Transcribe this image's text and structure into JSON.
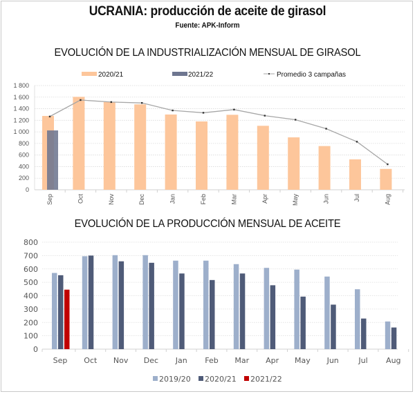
{
  "header": {
    "title": "UCRANIA: producción de aceite de girasol",
    "source": "Fuente: APK-Inform"
  },
  "colors": {
    "orange": "#fdc69b",
    "slate_semi": "#6e7690",
    "avg_line": "#a6a6a6",
    "light_blue": "#9dafcb",
    "dark_blue": "#4f5b78",
    "red": "#c00000"
  },
  "chart_data": [
    {
      "type": "bar",
      "title": "EVOLUCIÓN DE LA INDUSTRIALIZACIÓN MENSUAL DE GIRASOL",
      "xlabel": "",
      "ylabel": "",
      "categories": [
        "Sep",
        "Oct",
        "Nov",
        "Dec",
        "Jan",
        "Feb",
        "Mar",
        "Apr",
        "May",
        "Jun",
        "Jul",
        "Aug"
      ],
      "ylim": [
        0,
        1800
      ],
      "yticks": [
        0,
        200,
        400,
        600,
        800,
        1000,
        1200,
        1400,
        1600,
        1800
      ],
      "ytick_labels": [
        "0",
        "200",
        "400",
        "600",
        "800",
        "1 000",
        "1 200",
        "1 400",
        "1 600",
        "1 800"
      ],
      "grid": true,
      "legend_position": "top",
      "series": [
        {
          "name": "2020/21",
          "kind": "bar",
          "color": "#fdc69b",
          "values": [
            1275,
            1605,
            1515,
            1475,
            1300,
            1180,
            1295,
            1105,
            905,
            755,
            525,
            360
          ]
        },
        {
          "name": "2021/22",
          "kind": "bar",
          "color": "#6e7690",
          "values": [
            1025,
            null,
            null,
            null,
            null,
            null,
            null,
            null,
            null,
            null,
            null,
            null
          ]
        },
        {
          "name": "Promedio 3 campañas",
          "kind": "line",
          "color": "#a6a6a6",
          "values": [
            1265,
            1550,
            1515,
            1500,
            1370,
            1330,
            1385,
            1280,
            1210,
            1055,
            830,
            440
          ]
        }
      ]
    },
    {
      "type": "bar",
      "title": "EVOLUCIÓN DE LA PRODUCCIÓN MENSUAL DE ACEITE",
      "xlabel": "",
      "ylabel": "",
      "categories": [
        "Sep",
        "Oct",
        "Nov",
        "Dec",
        "Jan",
        "Feb",
        "Mar",
        "Apr",
        "May",
        "Jun",
        "Jul",
        "Aug"
      ],
      "ylim": [
        0,
        800
      ],
      "yticks": [
        0,
        100,
        200,
        300,
        400,
        500,
        600,
        700,
        800
      ],
      "ytick_labels": [
        "0",
        "100",
        "200",
        "300",
        "400",
        "500",
        "600",
        "700",
        "800"
      ],
      "grid": true,
      "legend_position": "bottom",
      "series": [
        {
          "name": "2019/20",
          "color": "#9dafcb",
          "values": [
            570,
            695,
            703,
            703,
            662,
            662,
            636,
            608,
            595,
            543,
            448,
            207
          ]
        },
        {
          "name": "2020/21",
          "color": "#4f5b78",
          "values": [
            553,
            700,
            657,
            646,
            566,
            517,
            566,
            478,
            393,
            333,
            229,
            162
          ]
        },
        {
          "name": "2021/22",
          "color": "#c00000",
          "values": [
            445,
            null,
            null,
            null,
            null,
            null,
            null,
            null,
            null,
            null,
            null,
            null
          ]
        }
      ]
    }
  ]
}
